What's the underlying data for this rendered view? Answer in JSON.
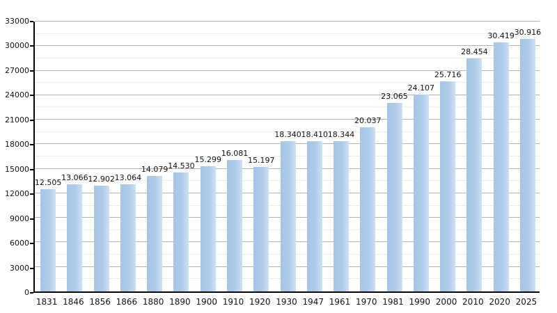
{
  "chart_data": {
    "type": "bar",
    "title": "",
    "categories": [
      "1831",
      "1846",
      "1856",
      "1866",
      "1880",
      "1890",
      "1900",
      "1910",
      "1920",
      "1930",
      "1947",
      "1961",
      "1970",
      "1981",
      "1990",
      "2000",
      "2010",
      "2020",
      "2025"
    ],
    "values": [
      12505,
      13066,
      12902,
      13064,
      14079,
      14530,
      15299,
      16081,
      15197,
      18340,
      18410,
      18344,
      20037,
      23065,
      24107,
      25716,
      28454,
      30419,
      30916
    ],
    "value_labels": [
      "12.505",
      "13.066",
      "12.902",
      "13.064",
      "14.079",
      "14.530",
      "15.299",
      "16.081",
      "15.197",
      "18.340",
      "18.410",
      "18.344",
      "20.037",
      "23.065",
      "24.107",
      "25.716",
      "28.454",
      "30.419",
      "30.916"
    ],
    "ylim": [
      0,
      33000
    ],
    "y_major_step": 3000,
    "y_minor_step": 1500,
    "grid": true,
    "legend": "none",
    "bar_color": "#aecbe9",
    "bar_color_light": "#cfe0f3",
    "grid_major_color": "#b2b2b2",
    "grid_minor_color": "#ececec",
    "axis_color": "#000000",
    "text_color": "#111111"
  }
}
